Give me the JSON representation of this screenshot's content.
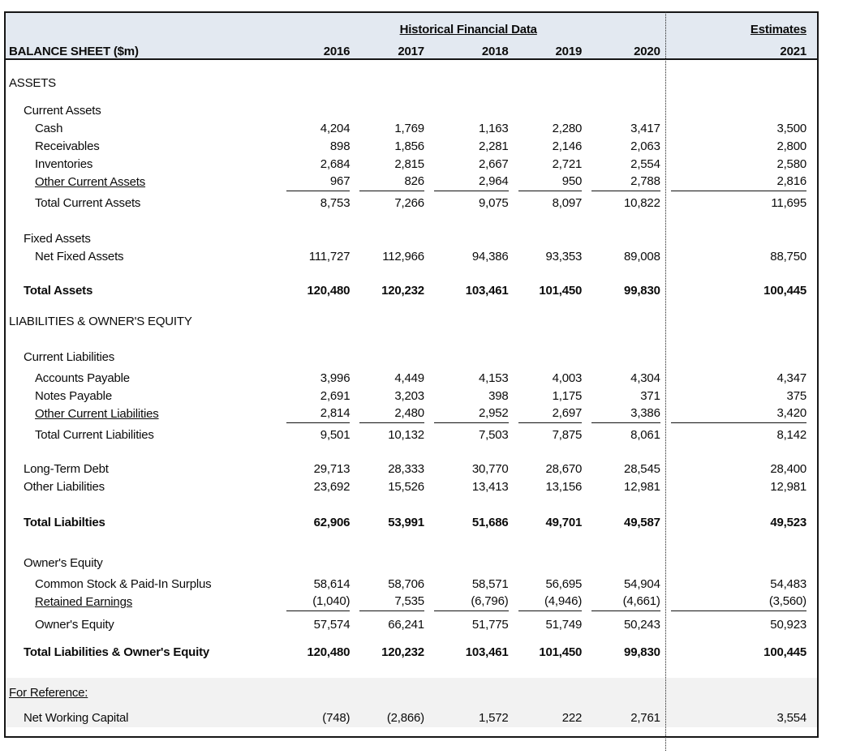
{
  "table": {
    "header": {
      "group_title": "Historical Financial Data",
      "estimates_title": "Estimates",
      "row_title": "BALANCE SHEET ($m)",
      "years": [
        "2016",
        "2017",
        "2018",
        "2019",
        "2020"
      ],
      "estimate_year": "2021"
    },
    "colors": {
      "header_bg": "#e3e9f1",
      "reference_bg": "#f2f2f2",
      "border": "#161616"
    },
    "rows": [
      {
        "label": "ASSETS",
        "indent": 0,
        "mt": 18
      },
      {
        "label": "Current Assets",
        "indent": 1,
        "mt": 12
      },
      {
        "label": "Cash",
        "indent": 2,
        "values": [
          "4,204",
          "1,769",
          "1,163",
          "2,280",
          "3,417",
          "3,500"
        ]
      },
      {
        "label": "Receivables",
        "indent": 2,
        "values": [
          "898",
          "1,856",
          "2,281",
          "2,146",
          "2,063",
          "2,800"
        ]
      },
      {
        "label": "Inventories",
        "indent": 2,
        "values": [
          "2,684",
          "2,815",
          "2,667",
          "2,721",
          "2,554",
          "2,580"
        ]
      },
      {
        "label": "Other Current Assets",
        "indent": 2,
        "u_label": true,
        "u_values": true,
        "values": [
          "967",
          "826",
          "2,964",
          "950",
          "2,788",
          "2,816"
        ]
      },
      {
        "label": "Total Current Assets",
        "indent": 2,
        "mt": 2,
        "values": [
          "8,753",
          "7,266",
          "9,075",
          "8,097",
          "10,822",
          "11,695"
        ]
      },
      {
        "label": "Fixed Assets",
        "indent": 1,
        "mt": 22
      },
      {
        "label": "Net Fixed Assets",
        "indent": 2,
        "values": [
          "111,727",
          "112,966",
          "94,386",
          "93,353",
          "89,008",
          "88,750"
        ]
      },
      {
        "label": "Total Assets",
        "indent": 1,
        "bold": true,
        "mt": 20,
        "values": [
          "120,480",
          "120,232",
          "103,461",
          "101,450",
          "99,830",
          "100,445"
        ]
      },
      {
        "label": "LIABILITIES & OWNER'S EQUITY",
        "indent": 0,
        "mt": 16
      },
      {
        "label": "Current Liabilities",
        "indent": 1,
        "mt": 22
      },
      {
        "label": "Accounts Payable",
        "indent": 2,
        "mt": 4,
        "values": [
          "3,996",
          "4,449",
          "4,153",
          "4,003",
          "4,304",
          "4,347"
        ]
      },
      {
        "label": "Notes Payable",
        "indent": 2,
        "values": [
          "2,691",
          "3,203",
          "398",
          "1,175",
          "371",
          "375"
        ]
      },
      {
        "label": "Other Current Liabilities",
        "indent": 2,
        "u_label": true,
        "u_values": true,
        "values": [
          "2,814",
          "2,480",
          "2,952",
          "2,697",
          "3,386",
          "3,420"
        ]
      },
      {
        "label": "Total Current Liabilities",
        "indent": 2,
        "mt": 2,
        "values": [
          "9,501",
          "10,132",
          "7,503",
          "7,875",
          "8,061",
          "8,142"
        ]
      },
      {
        "label": "Long-Term Debt",
        "indent": 1,
        "mt": 20,
        "values": [
          "29,713",
          "28,333",
          "30,770",
          "28,670",
          "28,545",
          "28,400"
        ]
      },
      {
        "label": "Other Liabilities",
        "indent": 1,
        "values": [
          "23,692",
          "15,526",
          "13,413",
          "13,156",
          "12,981",
          "12,981"
        ]
      },
      {
        "label": "Total Liabilties",
        "indent": 1,
        "bold": true,
        "mt": 22,
        "values": [
          "62,906",
          "53,991",
          "51,686",
          "49,701",
          "49,587",
          "49,523"
        ]
      },
      {
        "label": "Owner's Equity",
        "indent": 1,
        "mt": 28
      },
      {
        "label": "Common Stock & Paid-In Surplus",
        "indent": 2,
        "mt": 4,
        "values": [
          "58,614",
          "58,706",
          "58,571",
          "56,695",
          "54,904",
          "54,483"
        ]
      },
      {
        "label": "Retained Earnings",
        "indent": 2,
        "u_label": true,
        "u_values": true,
        "values": [
          "(1,040)",
          "7,535",
          "(6,796)",
          "(4,946)",
          "(4,661)",
          "(3,560)"
        ]
      },
      {
        "label": "Owner's Equity",
        "indent": 2,
        "mt": 4,
        "values": [
          "57,574",
          "66,241",
          "51,775",
          "51,749",
          "50,243",
          "50,923"
        ]
      },
      {
        "label": "Total Liabilities & Owner's Equity",
        "indent": 1,
        "bold": true,
        "mt": 12,
        "values": [
          "120,480",
          "120,232",
          "103,461",
          "101,450",
          "99,830",
          "100,445"
        ]
      }
    ],
    "reference": {
      "rows": [
        {
          "label": "For Reference:",
          "indent": 0,
          "u_label": true
        },
        {
          "label": "Net Working Capital",
          "indent": 1,
          "mt": 9,
          "values": [
            "(748)",
            "(2,866)",
            "1,572",
            "222",
            "2,761",
            "3,554"
          ]
        }
      ]
    }
  }
}
